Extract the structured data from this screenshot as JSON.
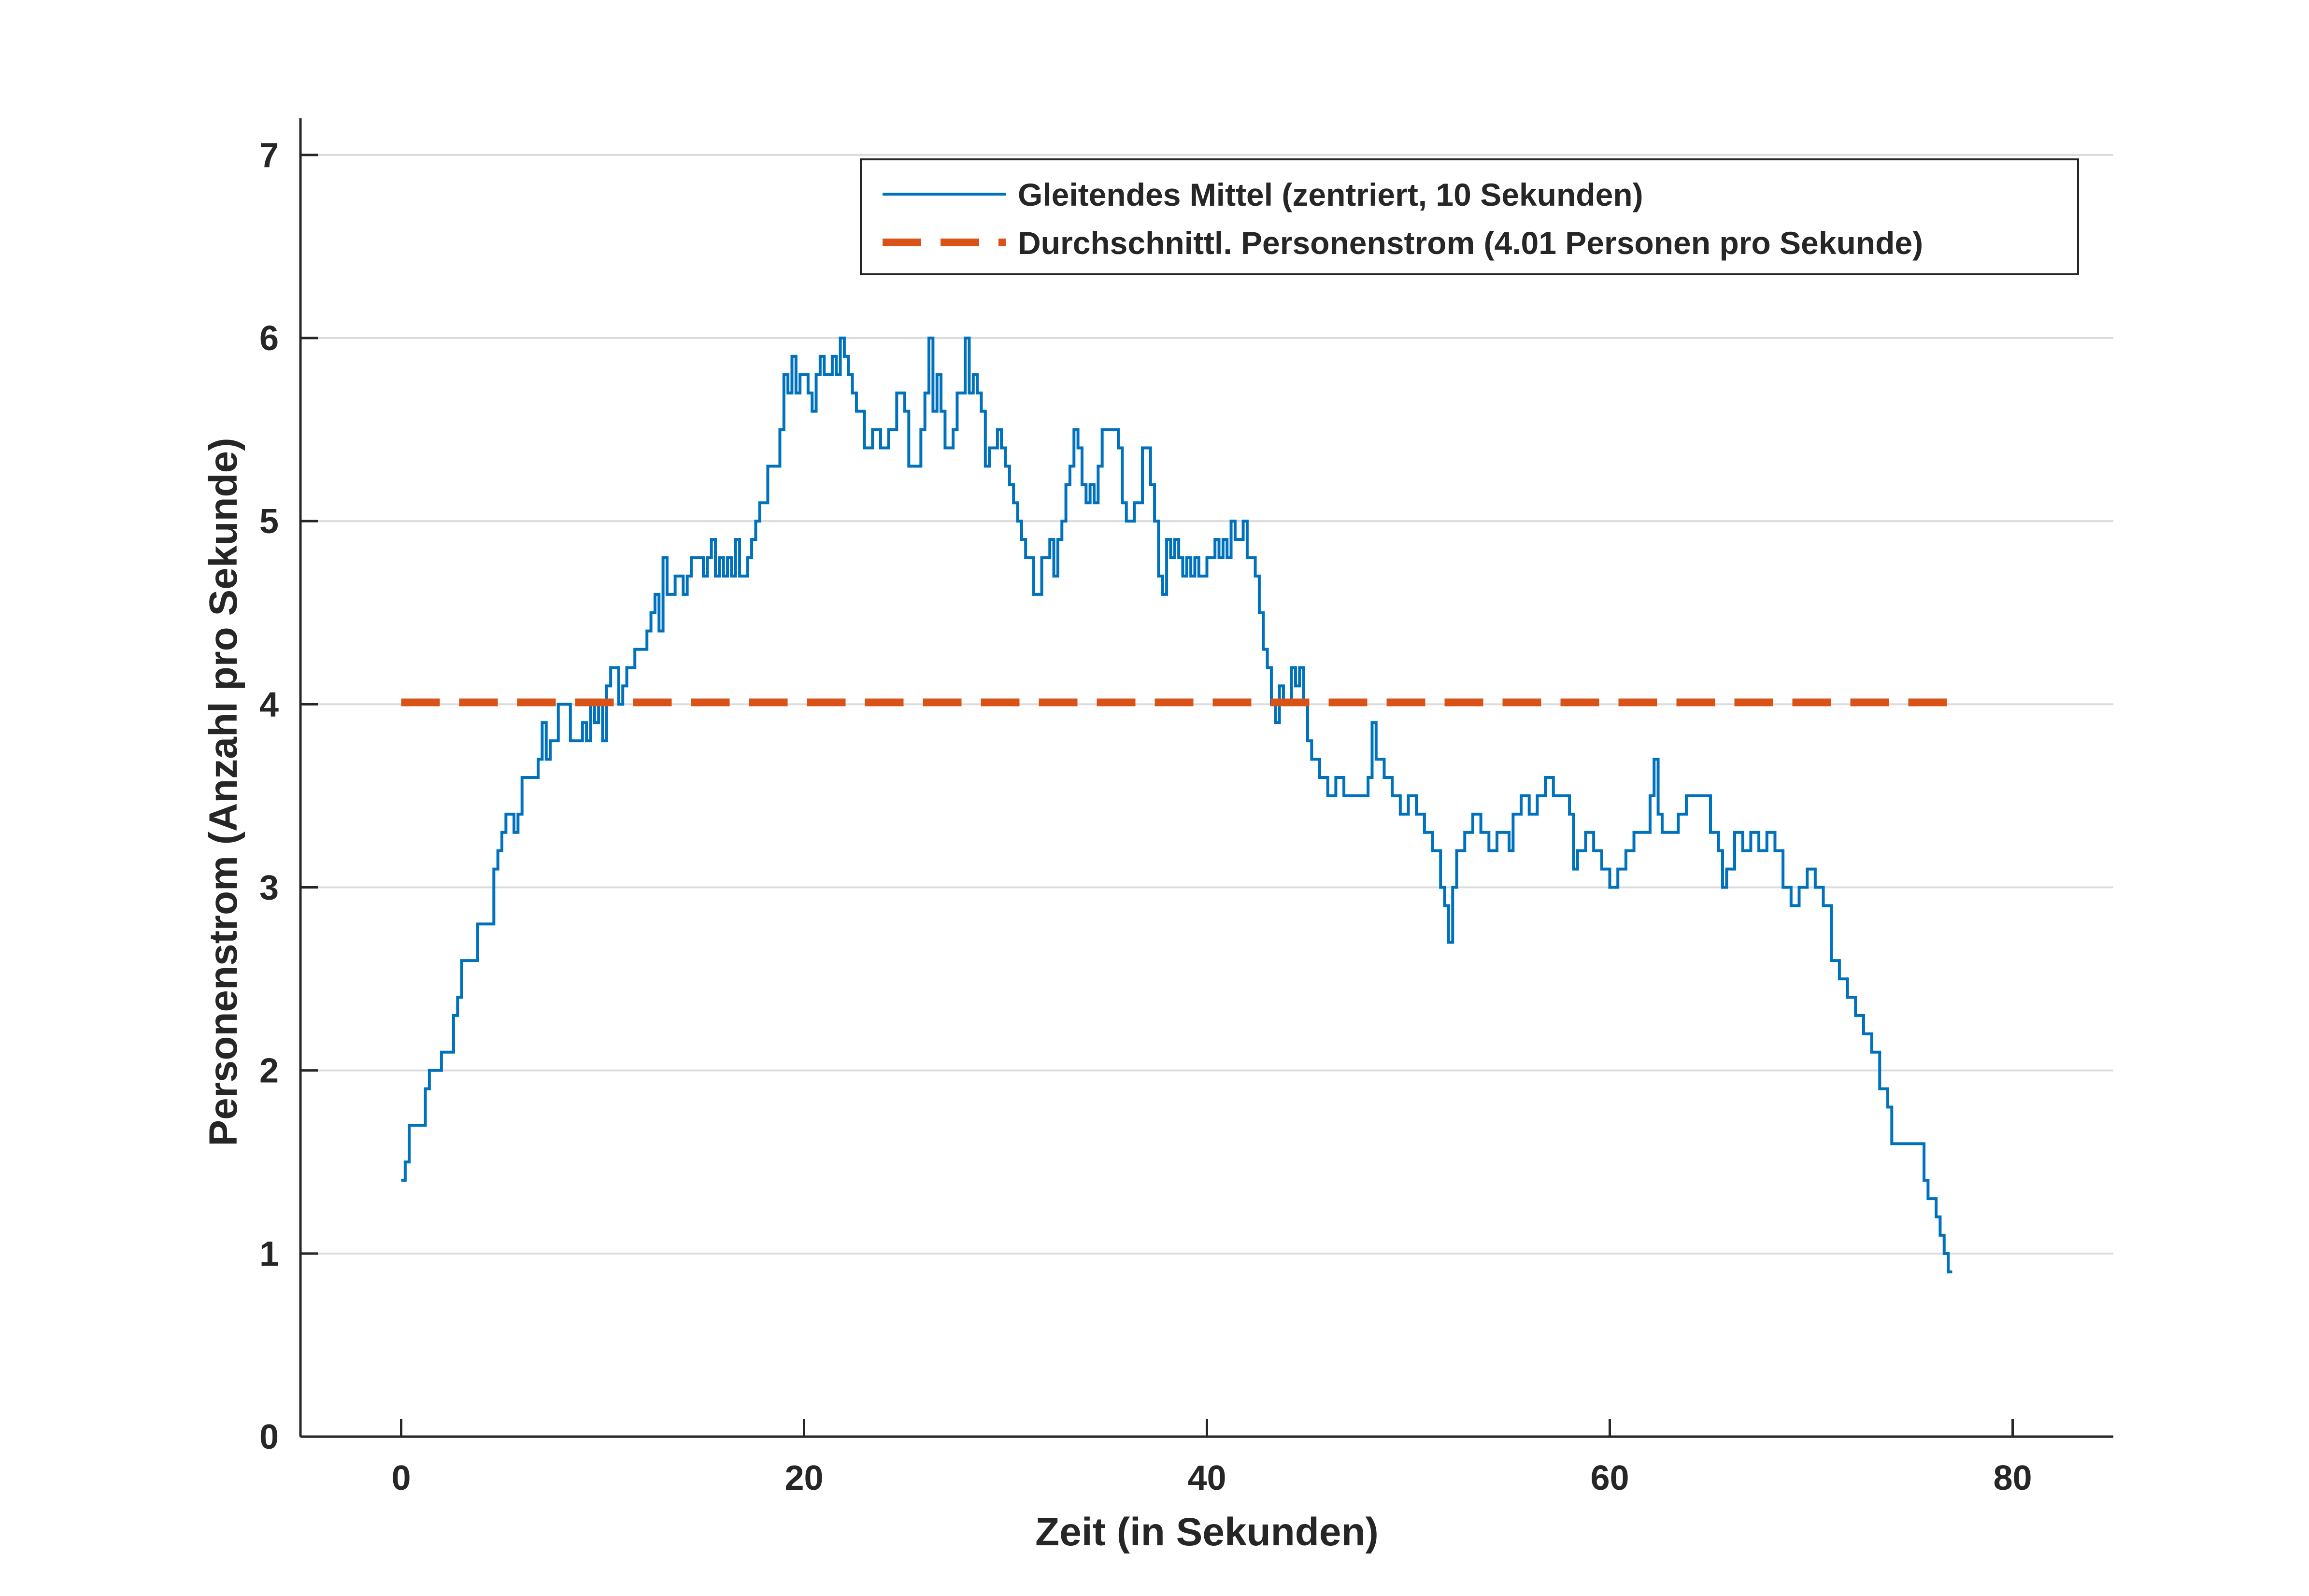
{
  "chart_data": {
    "type": "line",
    "title": "",
    "xlabel": "Zeit (in Sekunden)",
    "ylabel": "Personenstrom (Anzahl pro Sekunde)",
    "xlim": [
      -5,
      85
    ],
    "ylim": [
      0,
      7.2
    ],
    "xticks": [
      0,
      20,
      40,
      60,
      80
    ],
    "yticks": [
      0,
      1,
      2,
      3,
      4,
      5,
      6,
      7
    ],
    "grid": {
      "y": true,
      "x": false
    },
    "legend_position": "top-right",
    "series": [
      {
        "name": "Gleitendes Mittel (zentriert, 10 Sekunden)",
        "color": "#0072BD",
        "style": "solid",
        "points": [
          [
            0.0,
            1.4
          ],
          [
            0.2,
            1.5
          ],
          [
            0.4,
            1.7
          ],
          [
            1.0,
            1.7
          ],
          [
            1.2,
            1.9
          ],
          [
            1.4,
            2.0
          ],
          [
            1.8,
            2.0
          ],
          [
            2.0,
            2.1
          ],
          [
            2.4,
            2.1
          ],
          [
            2.6,
            2.3
          ],
          [
            2.8,
            2.4
          ],
          [
            3.0,
            2.6
          ],
          [
            3.6,
            2.6
          ],
          [
            3.8,
            2.8
          ],
          [
            4.4,
            2.8
          ],
          [
            4.6,
            3.1
          ],
          [
            4.8,
            3.2
          ],
          [
            5.0,
            3.3
          ],
          [
            5.2,
            3.4
          ],
          [
            5.4,
            3.4
          ],
          [
            5.6,
            3.3
          ],
          [
            5.8,
            3.4
          ],
          [
            6.0,
            3.6
          ],
          [
            6.5,
            3.6
          ],
          [
            6.8,
            3.7
          ],
          [
            7.0,
            3.9
          ],
          [
            7.2,
            3.7
          ],
          [
            7.4,
            3.8
          ],
          [
            7.6,
            3.8
          ],
          [
            7.8,
            4.0
          ],
          [
            8.2,
            4.0
          ],
          [
            8.4,
            3.8
          ],
          [
            8.8,
            3.8
          ],
          [
            9.0,
            3.9
          ],
          [
            9.2,
            3.8
          ],
          [
            9.4,
            4.0
          ],
          [
            9.6,
            3.9
          ],
          [
            9.8,
            4.0
          ],
          [
            10.0,
            3.8
          ],
          [
            10.2,
            4.1
          ],
          [
            10.4,
            4.2
          ],
          [
            10.8,
            4.0
          ],
          [
            11.0,
            4.1
          ],
          [
            11.2,
            4.2
          ],
          [
            11.6,
            4.3
          ],
          [
            12.0,
            4.3
          ],
          [
            12.2,
            4.4
          ],
          [
            12.4,
            4.5
          ],
          [
            12.6,
            4.6
          ],
          [
            12.8,
            4.4
          ],
          [
            13.0,
            4.8
          ],
          [
            13.2,
            4.6
          ],
          [
            13.6,
            4.7
          ],
          [
            14.0,
            4.6
          ],
          [
            14.2,
            4.7
          ],
          [
            14.4,
            4.8
          ],
          [
            14.8,
            4.8
          ],
          [
            15.0,
            4.7
          ],
          [
            15.2,
            4.8
          ],
          [
            15.4,
            4.9
          ],
          [
            15.6,
            4.7
          ],
          [
            15.8,
            4.8
          ],
          [
            16.0,
            4.7
          ],
          [
            16.2,
            4.8
          ],
          [
            16.4,
            4.7
          ],
          [
            16.6,
            4.9
          ],
          [
            16.8,
            4.7
          ],
          [
            17.0,
            4.7
          ],
          [
            17.2,
            4.8
          ],
          [
            17.4,
            4.9
          ],
          [
            17.6,
            5.0
          ],
          [
            17.8,
            5.1
          ],
          [
            18.2,
            5.3
          ],
          [
            18.6,
            5.3
          ],
          [
            18.8,
            5.5
          ],
          [
            19.0,
            5.8
          ],
          [
            19.2,
            5.7
          ],
          [
            19.4,
            5.9
          ],
          [
            19.6,
            5.7
          ],
          [
            19.8,
            5.8
          ],
          [
            20.0,
            5.8
          ],
          [
            20.2,
            5.7
          ],
          [
            20.4,
            5.6
          ],
          [
            20.6,
            5.8
          ],
          [
            20.8,
            5.9
          ],
          [
            21.0,
            5.8
          ],
          [
            21.4,
            5.9
          ],
          [
            21.6,
            5.8
          ],
          [
            21.8,
            6.0
          ],
          [
            22.0,
            5.9
          ],
          [
            22.2,
            5.8
          ],
          [
            22.4,
            5.7
          ],
          [
            22.6,
            5.6
          ],
          [
            23.0,
            5.4
          ],
          [
            23.4,
            5.5
          ],
          [
            23.8,
            5.4
          ],
          [
            24.2,
            5.5
          ],
          [
            24.6,
            5.7
          ],
          [
            25.0,
            5.6
          ],
          [
            25.2,
            5.3
          ],
          [
            25.6,
            5.3
          ],
          [
            25.8,
            5.5
          ],
          [
            26.0,
            5.7
          ],
          [
            26.2,
            6.0
          ],
          [
            26.4,
            5.6
          ],
          [
            26.6,
            5.8
          ],
          [
            26.8,
            5.6
          ],
          [
            27.0,
            5.4
          ],
          [
            27.4,
            5.5
          ],
          [
            27.6,
            5.7
          ],
          [
            27.8,
            5.7
          ],
          [
            28.0,
            6.0
          ],
          [
            28.2,
            5.7
          ],
          [
            28.4,
            5.8
          ],
          [
            28.6,
            5.7
          ],
          [
            28.8,
            5.6
          ],
          [
            29.0,
            5.3
          ],
          [
            29.2,
            5.4
          ],
          [
            29.6,
            5.5
          ],
          [
            29.8,
            5.4
          ],
          [
            30.0,
            5.3
          ],
          [
            30.2,
            5.2
          ],
          [
            30.4,
            5.1
          ],
          [
            30.6,
            5.0
          ],
          [
            30.8,
            4.9
          ],
          [
            31.0,
            4.8
          ],
          [
            31.4,
            4.6
          ],
          [
            31.8,
            4.8
          ],
          [
            32.2,
            4.9
          ],
          [
            32.4,
            4.7
          ],
          [
            32.6,
            4.9
          ],
          [
            32.8,
            5.0
          ],
          [
            33.0,
            5.2
          ],
          [
            33.2,
            5.3
          ],
          [
            33.4,
            5.5
          ],
          [
            33.6,
            5.4
          ],
          [
            33.8,
            5.2
          ],
          [
            34.0,
            5.1
          ],
          [
            34.2,
            5.2
          ],
          [
            34.4,
            5.1
          ],
          [
            34.6,
            5.3
          ],
          [
            34.8,
            5.5
          ],
          [
            35.2,
            5.5
          ],
          [
            35.6,
            5.4
          ],
          [
            35.8,
            5.1
          ],
          [
            36.0,
            5.0
          ],
          [
            36.4,
            5.1
          ],
          [
            36.8,
            5.4
          ],
          [
            37.2,
            5.2
          ],
          [
            37.4,
            5.0
          ],
          [
            37.6,
            4.7
          ],
          [
            37.8,
            4.6
          ],
          [
            38.0,
            4.9
          ],
          [
            38.2,
            4.8
          ],
          [
            38.4,
            4.9
          ],
          [
            38.6,
            4.8
          ],
          [
            38.8,
            4.7
          ],
          [
            39.0,
            4.8
          ],
          [
            39.2,
            4.7
          ],
          [
            39.4,
            4.8
          ],
          [
            39.6,
            4.7
          ],
          [
            40.0,
            4.8
          ],
          [
            40.2,
            4.8
          ],
          [
            40.4,
            4.9
          ],
          [
            40.6,
            4.8
          ],
          [
            40.8,
            4.9
          ],
          [
            41.0,
            4.8
          ],
          [
            41.2,
            5.0
          ],
          [
            41.4,
            4.9
          ],
          [
            41.6,
            4.9
          ],
          [
            41.8,
            5.0
          ],
          [
            42.0,
            4.8
          ],
          [
            42.2,
            4.8
          ],
          [
            42.4,
            4.7
          ],
          [
            42.6,
            4.5
          ],
          [
            42.8,
            4.3
          ],
          [
            43.0,
            4.2
          ],
          [
            43.2,
            4.0
          ],
          [
            43.4,
            3.9
          ],
          [
            43.6,
            4.1
          ],
          [
            43.8,
            4.0
          ],
          [
            44.0,
            4.0
          ],
          [
            44.2,
            4.2
          ],
          [
            44.4,
            4.1
          ],
          [
            44.6,
            4.2
          ],
          [
            44.8,
            4.0
          ],
          [
            45.0,
            3.8
          ],
          [
            45.2,
            3.7
          ],
          [
            45.6,
            3.6
          ],
          [
            46.0,
            3.5
          ],
          [
            46.4,
            3.6
          ],
          [
            46.8,
            3.5
          ],
          [
            47.2,
            3.5
          ],
          [
            47.6,
            3.5
          ],
          [
            48.0,
            3.6
          ],
          [
            48.2,
            3.9
          ],
          [
            48.4,
            3.7
          ],
          [
            48.8,
            3.6
          ],
          [
            49.2,
            3.5
          ],
          [
            49.6,
            3.4
          ],
          [
            50.0,
            3.5
          ],
          [
            50.4,
            3.4
          ],
          [
            50.8,
            3.3
          ],
          [
            51.2,
            3.2
          ],
          [
            51.6,
            3.0
          ],
          [
            51.8,
            2.9
          ],
          [
            52.0,
            2.7
          ],
          [
            52.2,
            3.0
          ],
          [
            52.4,
            3.2
          ],
          [
            52.8,
            3.3
          ],
          [
            53.2,
            3.4
          ],
          [
            53.6,
            3.3
          ],
          [
            54.0,
            3.2
          ],
          [
            54.4,
            3.3
          ],
          [
            54.8,
            3.3
          ],
          [
            55.0,
            3.2
          ],
          [
            55.2,
            3.4
          ],
          [
            55.6,
            3.5
          ],
          [
            56.0,
            3.4
          ],
          [
            56.4,
            3.5
          ],
          [
            56.8,
            3.6
          ],
          [
            57.2,
            3.5
          ],
          [
            57.6,
            3.5
          ],
          [
            58.0,
            3.4
          ],
          [
            58.2,
            3.1
          ],
          [
            58.4,
            3.2
          ],
          [
            58.8,
            3.3
          ],
          [
            59.2,
            3.2
          ],
          [
            59.6,
            3.1
          ],
          [
            60.0,
            3.0
          ],
          [
            60.4,
            3.1
          ],
          [
            60.8,
            3.2
          ],
          [
            61.2,
            3.3
          ],
          [
            61.6,
            3.3
          ],
          [
            62.0,
            3.5
          ],
          [
            62.2,
            3.7
          ],
          [
            62.4,
            3.4
          ],
          [
            62.6,
            3.3
          ],
          [
            63.0,
            3.3
          ],
          [
            63.4,
            3.4
          ],
          [
            63.8,
            3.5
          ],
          [
            64.2,
            3.5
          ],
          [
            64.6,
            3.5
          ],
          [
            65.0,
            3.3
          ],
          [
            65.4,
            3.2
          ],
          [
            65.6,
            3.0
          ],
          [
            65.8,
            3.1
          ],
          [
            66.2,
            3.3
          ],
          [
            66.6,
            3.2
          ],
          [
            67.0,
            3.3
          ],
          [
            67.4,
            3.2
          ],
          [
            67.8,
            3.3
          ],
          [
            68.2,
            3.2
          ],
          [
            68.6,
            3.0
          ],
          [
            69.0,
            2.9
          ],
          [
            69.4,
            3.0
          ],
          [
            69.8,
            3.1
          ],
          [
            70.2,
            3.0
          ],
          [
            70.6,
            2.9
          ],
          [
            71.0,
            2.6
          ],
          [
            71.4,
            2.5
          ],
          [
            71.8,
            2.4
          ],
          [
            72.2,
            2.3
          ],
          [
            72.6,
            2.2
          ],
          [
            73.0,
            2.1
          ],
          [
            73.4,
            1.9
          ],
          [
            73.8,
            1.8
          ],
          [
            74.0,
            1.6
          ],
          [
            74.8,
            1.6
          ],
          [
            75.4,
            1.6
          ],
          [
            75.6,
            1.4
          ],
          [
            75.8,
            1.3
          ],
          [
            76.0,
            1.3
          ],
          [
            76.2,
            1.2
          ],
          [
            76.4,
            1.1
          ],
          [
            76.6,
            1.0
          ],
          [
            76.8,
            0.9
          ],
          [
            77.0,
            0.9
          ]
        ]
      },
      {
        "name": "Durchschnittl. Personenstrom (4.01 Personen pro Sekunde)",
        "color": "#D95319",
        "style": "dashed",
        "points": [
          [
            0.0,
            4.01
          ],
          [
            77.0,
            4.01
          ]
        ]
      }
    ]
  }
}
